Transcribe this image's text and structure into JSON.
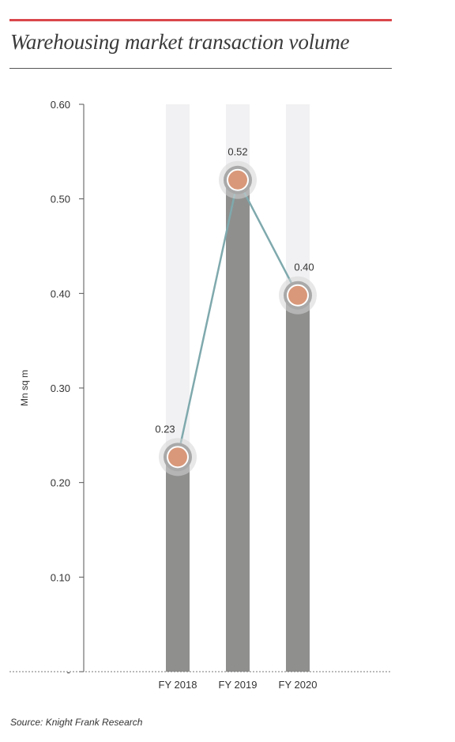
{
  "title": "Warehousing market transaction volume",
  "source": "Source: Knight Frank Research",
  "colors": {
    "accent_rule": "#d9474b",
    "bar": "#8f8f8e",
    "bar_background": "#f1f1f3",
    "line": "#7fa9ad",
    "marker_fill": "#d9987a",
    "marker_ring": "#a9a9a9"
  },
  "chart_data": {
    "type": "bar",
    "categories": [
      "FY 2018",
      "FY 2019",
      "FY 2020"
    ],
    "values": [
      0.227,
      0.52,
      0.398
    ],
    "data_labels": [
      "0.23",
      "0.52",
      "0.40"
    ],
    "ylabel": "Mn sq m",
    "xlabel": "",
    "ylim": [
      0,
      0.6
    ],
    "yticks": [
      0,
      0.1,
      0.2,
      0.3,
      0.4,
      0.5,
      0.6
    ],
    "ytick_labels": [
      "-",
      "0.10",
      "0.20",
      "0.30",
      "0.40",
      "0.50",
      "0.60"
    ],
    "overlay": "line with circular markers connecting bar tops",
    "grid": false
  }
}
